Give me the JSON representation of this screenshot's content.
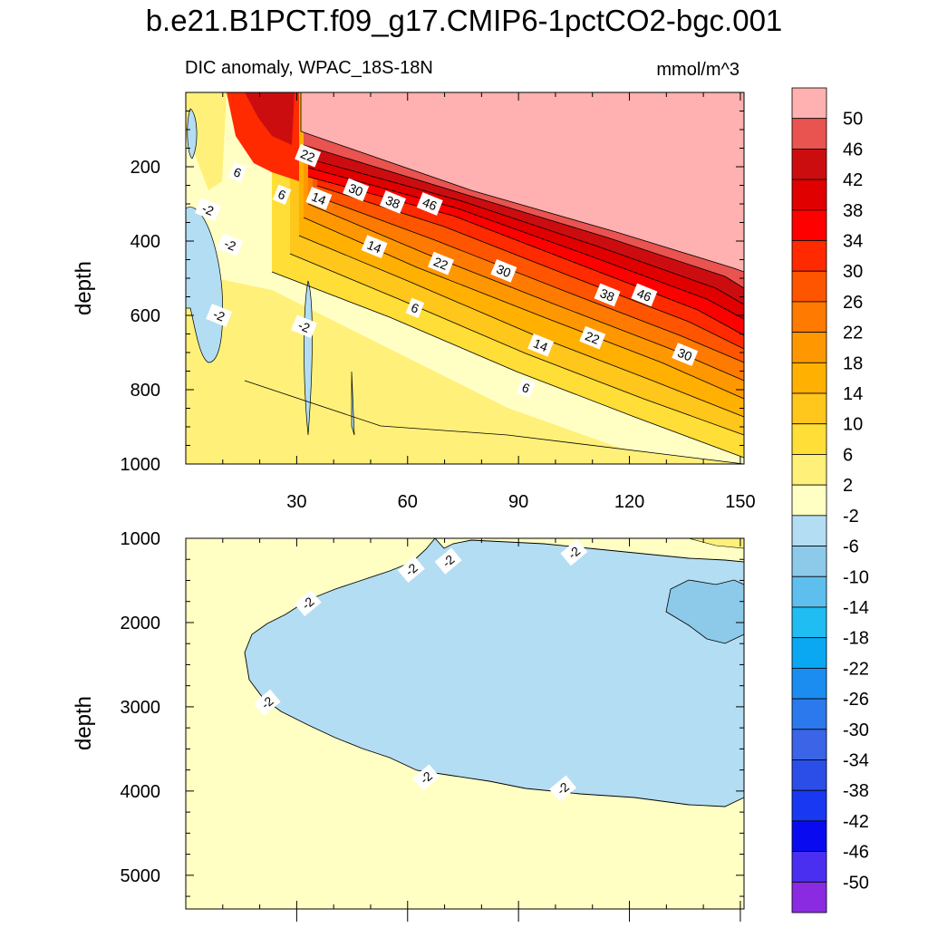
{
  "header": {
    "title": "b.e21.B1PCT.f09_g17.CMIP6-1pctCO2-bgc.001",
    "subtitle": "DIC anomaly, WPAC_18S-18N",
    "units": "mmol/m^3"
  },
  "chart_data": [
    {
      "type": "contour",
      "panel": "upper",
      "title": "DIC anomaly, WPAC_18S-18N",
      "xlabel": "",
      "ylabel": "depth",
      "xlim": [
        0,
        151
      ],
      "ylim": [
        1000,
        0
      ],
      "xticks": [
        30,
        60,
        90,
        120,
        150
      ],
      "yticks": [
        200,
        400,
        600,
        800,
        1000
      ],
      "contour_labels": [
        {
          "text": "22",
          "x": 33,
          "y": 170
        },
        {
          "text": "6",
          "x": 14,
          "y": 215
        },
        {
          "text": "30",
          "x": 46,
          "y": 262
        },
        {
          "text": "38",
          "x": 56,
          "y": 295
        },
        {
          "text": "46",
          "x": 66,
          "y": 300
        },
        {
          "text": "6",
          "x": 26,
          "y": 275
        },
        {
          "text": "14",
          "x": 36,
          "y": 285
        },
        {
          "text": "-2",
          "x": 6,
          "y": 315
        },
        {
          "text": "-2",
          "x": 12,
          "y": 410
        },
        {
          "text": "14",
          "x": 51,
          "y": 415
        },
        {
          "text": "22",
          "x": 69,
          "y": 460
        },
        {
          "text": "30",
          "x": 86,
          "y": 480
        },
        {
          "text": "38",
          "x": 114,
          "y": 545
        },
        {
          "text": "46",
          "x": 124,
          "y": 545
        },
        {
          "text": "-2",
          "x": 9,
          "y": 600
        },
        {
          "text": "-2",
          "x": 32,
          "y": 630
        },
        {
          "text": "6",
          "x": 62,
          "y": 580
        },
        {
          "text": "22",
          "x": 110,
          "y": 660
        },
        {
          "text": "14",
          "x": 96,
          "y": 680
        },
        {
          "text": "30",
          "x": 135,
          "y": 705
        },
        {
          "text": "6",
          "x": 92,
          "y": 795
        }
      ]
    },
    {
      "type": "contour",
      "panel": "lower",
      "xlabel": "",
      "ylabel": "depth",
      "xlim": [
        0,
        151
      ],
      "ylim": [
        5400,
        1000
      ],
      "yticks": [
        1000,
        2000,
        3000,
        4000,
        5000
      ],
      "contour_labels": [
        {
          "text": "-2",
          "x": 105,
          "y": 1170
        },
        {
          "text": "-2",
          "x": 61,
          "y": 1370
        },
        {
          "text": "-2",
          "x": 71,
          "y": 1270
        },
        {
          "text": "-2",
          "x": 33,
          "y": 1770
        },
        {
          "text": "-2",
          "x": 22,
          "y": 2950
        },
        {
          "text": "-2",
          "x": 65,
          "y": 3840
        },
        {
          "text": "-2",
          "x": 102,
          "y": 3970
        }
      ]
    }
  ],
  "colorbar": {
    "labels": [
      "50",
      "46",
      "42",
      "38",
      "34",
      "30",
      "26",
      "22",
      "18",
      "14",
      "10",
      "6",
      "2",
      "-2",
      "-6",
      "-10",
      "-14",
      "-18",
      "-22",
      "-26",
      "-30",
      "-34",
      "-38",
      "-42",
      "-46",
      "-50"
    ],
    "colors": [
      "#ffb0b0",
      "#e95350",
      "#cc0d10",
      "#e00000",
      "#ff0000",
      "#ff2a00",
      "#ff5500",
      "#ff7a00",
      "#ff9800",
      "#ffb000",
      "#ffc61c",
      "#ffde37",
      "#fff07a",
      "#ffffc4",
      "#b3ddf2",
      "#8dcaea",
      "#5ebfef",
      "#20bdf2",
      "#0aa8f2",
      "#1c8df0",
      "#2b79ec",
      "#3b65e6",
      "#2c4ee8",
      "#1838f2",
      "#0a0af0",
      "#4a2ff0",
      "#8a2be2"
    ]
  }
}
